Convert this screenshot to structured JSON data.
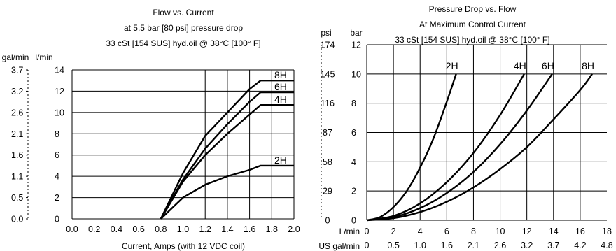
{
  "chart_data": [
    {
      "type": "line",
      "title": [
        "Flow vs. Current",
        "at 5.5 bar [80 psi] pressure drop",
        "33 cSt [154 SUS] hyd.oil @ 38°C [100° F]"
      ],
      "xlabel": "Current, Amps (with 12 VDC coil)",
      "x_ticks": [
        "0.0",
        "0.2",
        "0.4",
        "0.6",
        "0.8",
        "1.0",
        "1.2",
        "1.4",
        "1.6",
        "1.8",
        "2.0"
      ],
      "xlim": [
        0,
        2.0
      ],
      "ylim": [
        0,
        14
      ],
      "y_unit_primary": "l/min",
      "y_unit_secondary": "gal/min",
      "y_ticks_primary": [
        "0",
        "2",
        "4",
        "6",
        "8",
        "10",
        "12",
        "14"
      ],
      "y_ticks_secondary": [
        "0.0",
        "0.5",
        "1.1",
        "1.6",
        "2.1",
        "2.6",
        "3.2",
        "3.7"
      ],
      "grid": true,
      "series": [
        {
          "name": "2H",
          "x": [
            0.8,
            1.0,
            1.2,
            1.4,
            1.6,
            1.7,
            2.0
          ],
          "y": [
            0,
            2.0,
            3.2,
            4.0,
            4.6,
            5.0,
            5.0
          ]
        },
        {
          "name": "4H",
          "x": [
            0.8,
            1.0,
            1.2,
            1.4,
            1.6,
            1.7,
            2.0
          ],
          "y": [
            0,
            3.5,
            6.0,
            8.0,
            9.8,
            10.7,
            10.7
          ]
        },
        {
          "name": "6H",
          "x": [
            0.8,
            1.0,
            1.2,
            1.4,
            1.6,
            1.7,
            2.0
          ],
          "y": [
            0,
            3.7,
            6.6,
            8.9,
            11.0,
            11.9,
            11.9
          ]
        },
        {
          "name": "8H",
          "x": [
            0.8,
            1.0,
            1.2,
            1.4,
            1.6,
            1.7,
            2.0
          ],
          "y": [
            0,
            4.3,
            7.8,
            10.0,
            12.2,
            13.0,
            13.0
          ]
        }
      ]
    },
    {
      "type": "line",
      "title": [
        "Pressure Drop vs. Flow",
        "At Maximum Control Current",
        "33 cSt [154 SUS] hyd.oil @ 38°C [100° F]"
      ],
      "x_unit_primary": "L/min",
      "x_unit_secondary": "US gal/min",
      "x_ticks_primary": [
        "0",
        "2",
        "4",
        "6",
        "8",
        "10",
        "12",
        "14",
        "16",
        "18"
      ],
      "x_ticks_secondary": [
        "0",
        "0.5",
        "1.0",
        "1.6",
        "2.1",
        "2.6",
        "3.2",
        "3.7",
        "4.2",
        "4.8"
      ],
      "xlim": [
        0,
        18
      ],
      "ylim": [
        0,
        12
      ],
      "y_unit_primary": "bar",
      "y_unit_secondary": "psi",
      "y_ticks_primary": [
        "0",
        "2",
        "4",
        "6",
        "8",
        "10",
        "12"
      ],
      "y_ticks_secondary": [
        "0",
        "29",
        "58",
        "87",
        "116",
        "145",
        "174"
      ],
      "grid": true,
      "series": [
        {
          "name": "2H",
          "x": [
            0,
            1,
            2,
            3,
            4,
            5,
            6,
            6.7
          ],
          "y": [
            0,
            0.22,
            0.9,
            2.0,
            3.6,
            5.6,
            8.1,
            10.0
          ]
        },
        {
          "name": "4H",
          "x": [
            0,
            2,
            4,
            6,
            8,
            10,
            11.8
          ],
          "y": [
            0,
            0.29,
            1.15,
            2.6,
            4.6,
            7.2,
            10.0
          ]
        },
        {
          "name": "6H",
          "x": [
            0,
            2,
            4,
            6,
            8,
            10,
            12,
            13.9
          ],
          "y": [
            0,
            0.21,
            0.83,
            1.86,
            3.3,
            5.2,
            7.5,
            10.0
          ]
        },
        {
          "name": "8H",
          "x": [
            0,
            2,
            4,
            6,
            8,
            10,
            12,
            14,
            16,
            16.9
          ],
          "y": [
            0,
            0.14,
            0.56,
            1.26,
            2.24,
            3.5,
            5.0,
            6.9,
            8.9,
            10.0
          ]
        }
      ]
    }
  ]
}
